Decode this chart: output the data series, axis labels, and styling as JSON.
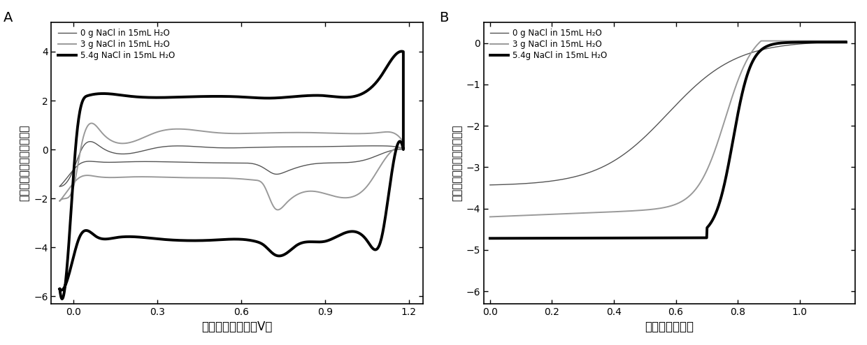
{
  "panel_A": {
    "title": "A",
    "xlabel": "标准氢电极电位（V）",
    "ylabel": "电流密度／毫安每平方厘米",
    "xlim": [
      -0.08,
      1.25
    ],
    "ylim": [
      -6.3,
      5.2
    ],
    "xticks": [
      0.0,
      0.3,
      0.6,
      0.9,
      1.2
    ],
    "yticks": [
      -6,
      -4,
      -2,
      0,
      2,
      4
    ],
    "legend": [
      "0 g NaCl in 15mL H₂O",
      "3 g NaCl in 15mL H₂O",
      "5.4g NaCl in 15mL H₂O"
    ]
  },
  "panel_B": {
    "title": "B",
    "xlabel": "标准氢电极电位",
    "ylabel": "电流密度／毫安每平方厘米",
    "xlim": [
      -0.02,
      1.18
    ],
    "ylim": [
      -6.3,
      0.5
    ],
    "xticks": [
      0.0,
      0.2,
      0.4,
      0.6,
      0.8,
      1.0
    ],
    "yticks": [
      -6,
      -5,
      -4,
      -3,
      -2,
      -1,
      0
    ],
    "legend": [
      "0 g NaCl in 15mL H₂O",
      "3 g NaCl in 15mL H₂O",
      "5.4g NaCl in 15mL H₂O"
    ]
  },
  "background_color": "#ffffff",
  "c_thin": "#555555",
  "c_med": "#999999",
  "c_thick": "#000000",
  "lw_thin": 1.0,
  "lw_med": 1.4,
  "lw_thick": 2.8
}
